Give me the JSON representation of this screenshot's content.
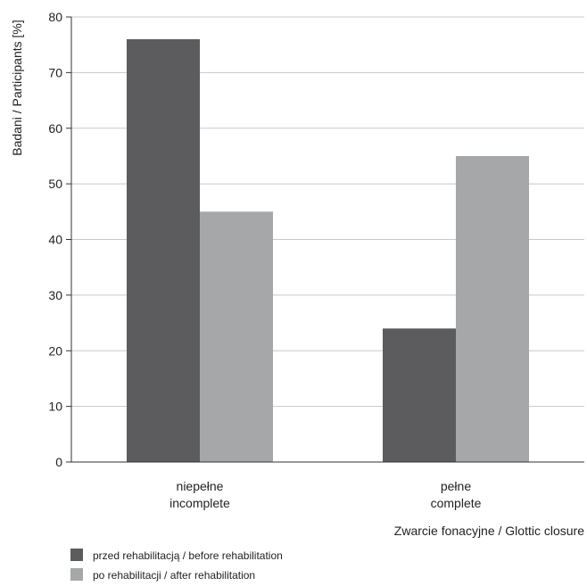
{
  "chart_data": {
    "type": "bar",
    "title": "",
    "categories": [
      [
        "niepełne",
        "incomplete"
      ],
      [
        "pełne",
        "complete"
      ]
    ],
    "series": [
      {
        "name": "przed rehabilitacją / before rehabilitation",
        "color": "#5c5c5e",
        "values": [
          76,
          24
        ]
      },
      {
        "name": "po rehabilitacji / after rehabilitation",
        "color": "#a6a7a9",
        "values": [
          45,
          55
        ]
      }
    ],
    "xlabel": "Zwarcie fonacyjne / Glottic closure",
    "ylabel": "Badani / Participants [%]",
    "ylim": [
      0,
      80
    ],
    "yticks": [
      0,
      10,
      20,
      30,
      40,
      50,
      60,
      70,
      80
    ],
    "grid": true,
    "legend_position": "bottom-left"
  }
}
